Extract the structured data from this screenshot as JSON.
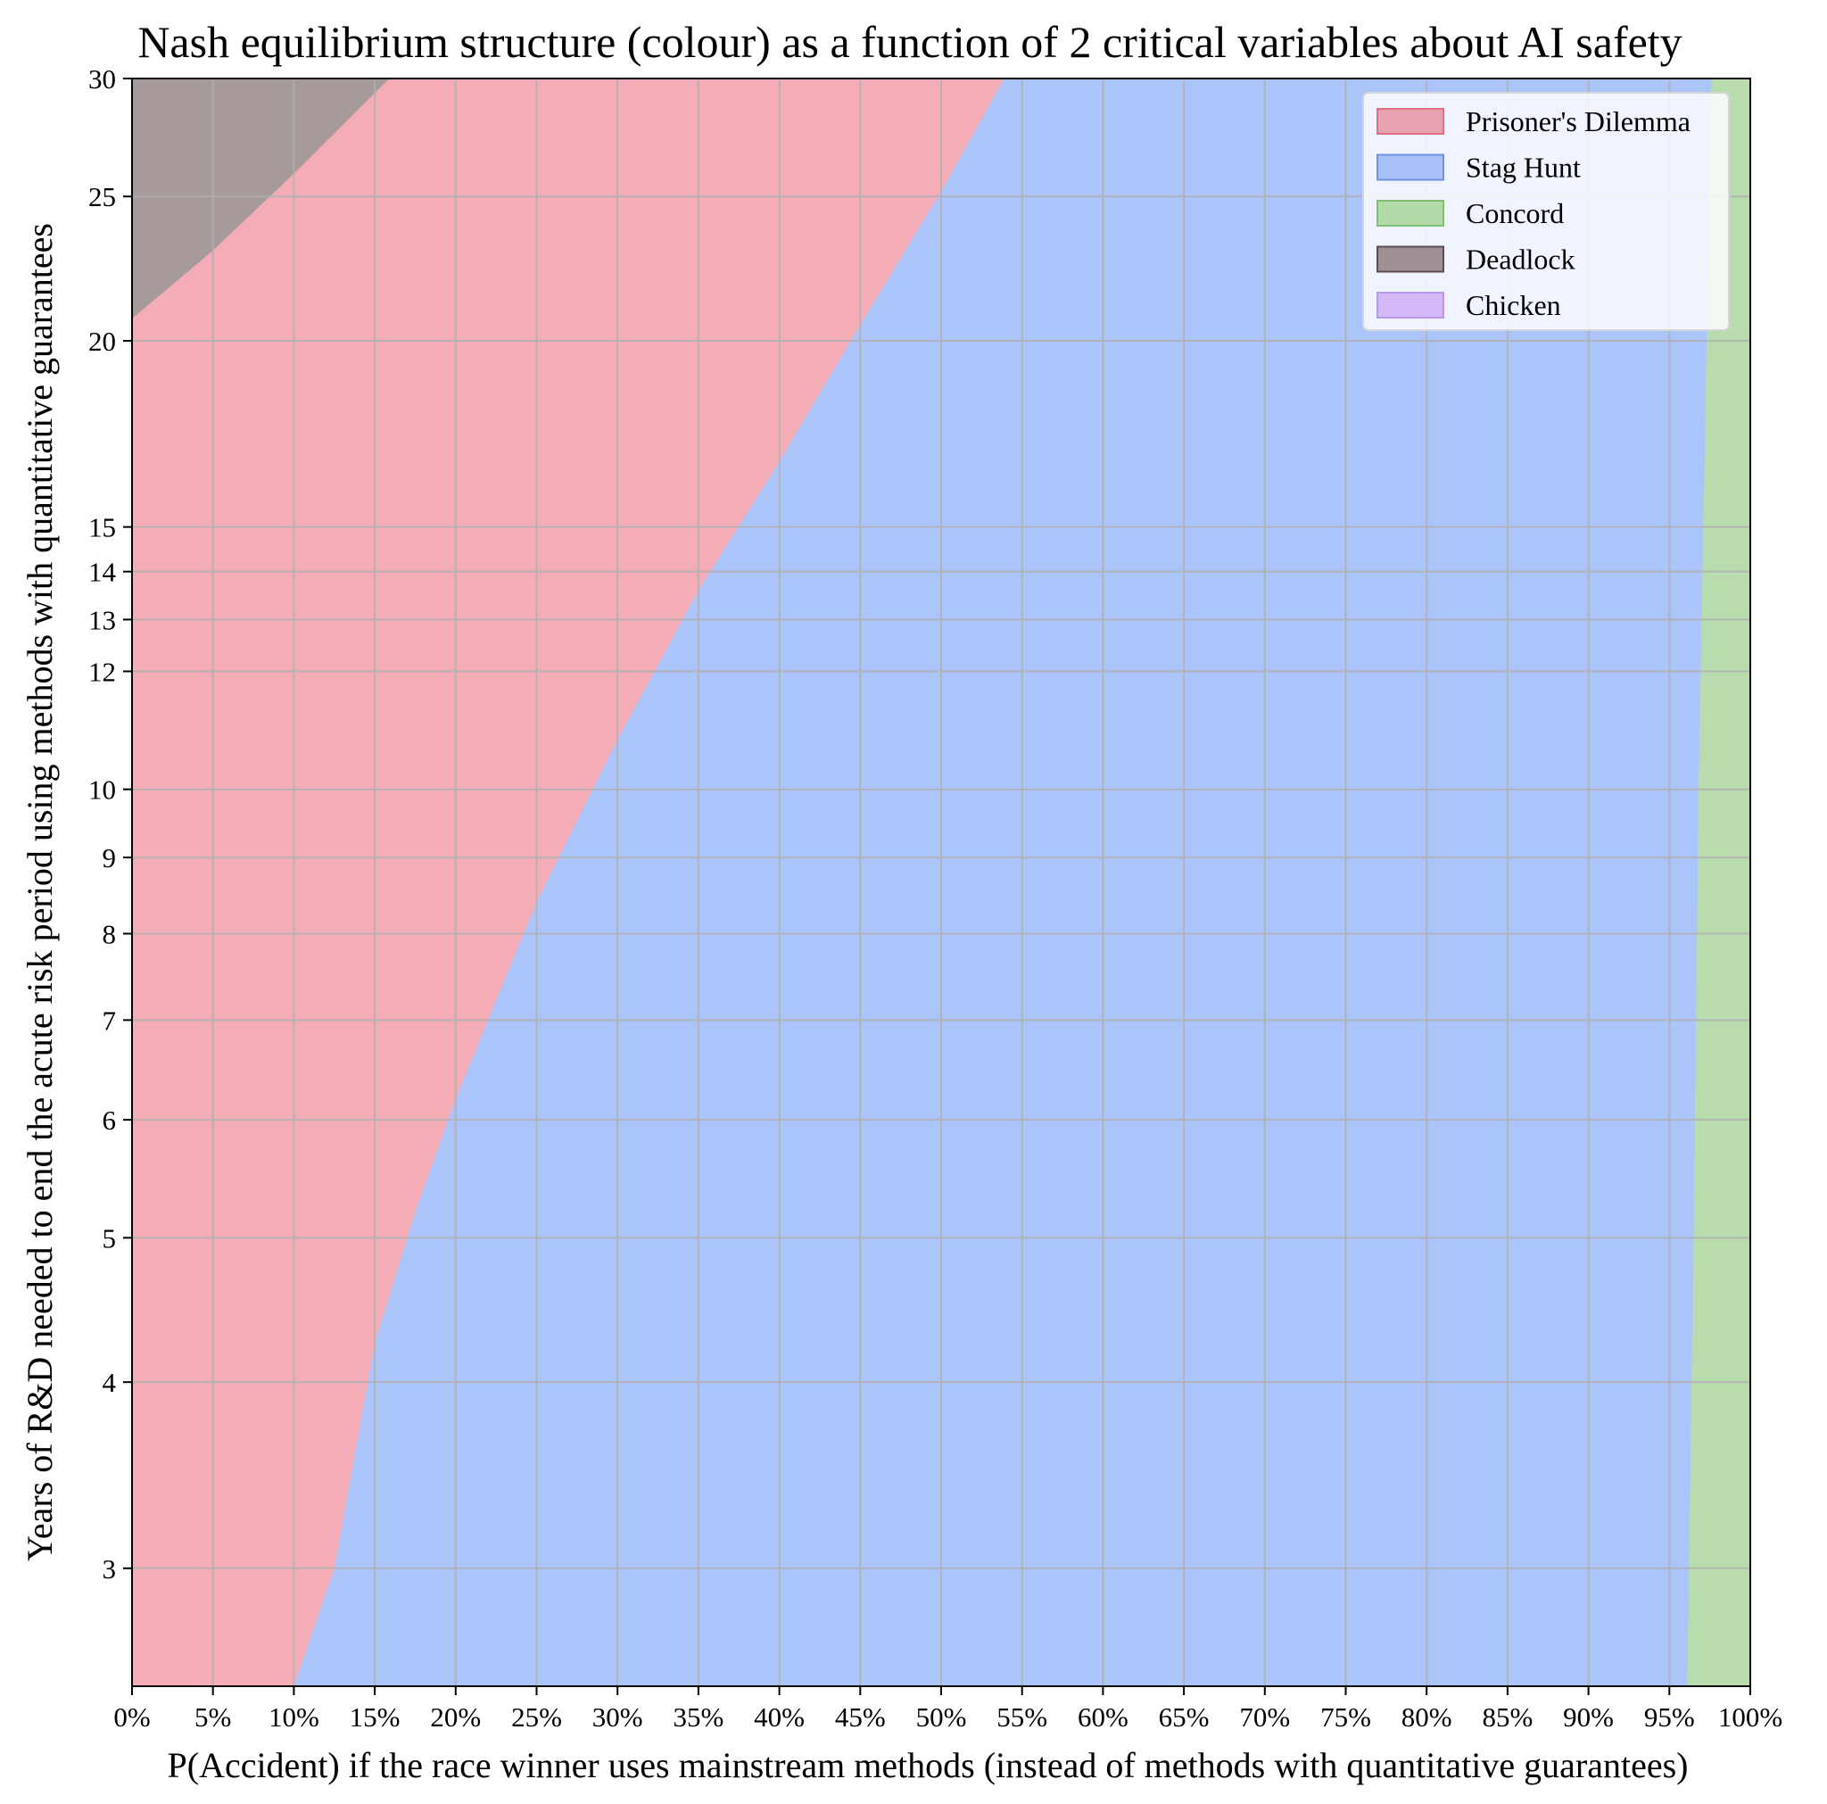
{
  "chart_data": {
    "type": "area",
    "title": "Nash equilibrium structure (colour) as a function of 2 critical variables about AI safety",
    "xlabel": "P(Accident) if the race winner uses mainstream methods (instead of methods with quantitative guarantees)",
    "ylabel": "Years of R&D needed to end the acute risk period using methods with quantitative guarantees",
    "xlim": [
      0,
      100
    ],
    "ylim": [
      2.5,
      30
    ],
    "yscale": "log",
    "grid": true,
    "legend_position": "top-right",
    "x_ticks": [
      0,
      5,
      10,
      15,
      20,
      25,
      30,
      35,
      40,
      45,
      50,
      55,
      60,
      65,
      70,
      75,
      80,
      85,
      90,
      95,
      100
    ],
    "x_tick_labels": [
      "0%",
      "5%",
      "10%",
      "15%",
      "20%",
      "25%",
      "30%",
      "35%",
      "40%",
      "45%",
      "50%",
      "55%",
      "60%",
      "65%",
      "70%",
      "75%",
      "80%",
      "85%",
      "90%",
      "95%",
      "100%"
    ],
    "y_ticks": [
      3,
      4,
      5,
      6,
      7,
      8,
      9,
      10,
      12,
      13,
      14,
      15,
      20,
      25,
      30
    ],
    "y_tick_labels": [
      "3",
      "4",
      "5",
      "6",
      "7",
      "8",
      "9",
      "10",
      "12",
      "13",
      "14",
      "15",
      "20",
      "25",
      "30"
    ],
    "series": [
      {
        "name": "Prisoner's Dilemma",
        "color": "#f4acb7",
        "legend_color": "#e9a3b0",
        "legend_edge": "#e0707f",
        "region": "between Deadlock boundary (above) and Stag Hunt boundary (right)"
      },
      {
        "name": "Stag Hunt",
        "color": "#abc4f9",
        "legend_color": "#a8c0f5",
        "legend_edge": "#6f92e8",
        "region": "right of Prisoner's Dilemma boundary, left of Concord boundary"
      },
      {
        "name": "Concord",
        "color": "#b8dcae",
        "legend_color": "#b3dba8",
        "legend_edge": "#7fbf76",
        "region": "right of Concord boundary"
      },
      {
        "name": "Deadlock",
        "color": "#a69a9b",
        "legend_color": "#9e9094",
        "legend_edge": "#5e4a52",
        "region": "upper-left corner"
      },
      {
        "name": "Chicken",
        "color": "#d3baf6",
        "legend_color": "#d3baf6",
        "legend_edge": "#b897ee",
        "region": "none visible"
      }
    ],
    "boundaries": {
      "deadlock_pd": [
        {
          "x": 0,
          "y": 20.7
        },
        {
          "x": 5,
          "y": 23.0
        },
        {
          "x": 10,
          "y": 25.9
        },
        {
          "x": 15.9,
          "y": 30
        }
      ],
      "pd_staghunt": [
        {
          "x": 10,
          "y": 2.5
        },
        {
          "x": 12.5,
          "y": 3.0
        },
        {
          "x": 15,
          "y": 4.25
        },
        {
          "x": 17.5,
          "y": 5.2
        },
        {
          "x": 20,
          "y": 6.2
        },
        {
          "x": 25,
          "y": 8.4
        },
        {
          "x": 30,
          "y": 10.8
        },
        {
          "x": 35,
          "y": 13.6
        },
        {
          "x": 40,
          "y": 16.6
        },
        {
          "x": 45,
          "y": 20.5
        },
        {
          "x": 50,
          "y": 25.2
        },
        {
          "x": 53.9,
          "y": 30
        }
      ],
      "staghunt_concord": [
        {
          "x": 96.1,
          "y": 2.5
        },
        {
          "x": 96.5,
          "y": 5.0
        },
        {
          "x": 96.8,
          "y": 10.0
        },
        {
          "x": 97.1,
          "y": 15.0
        },
        {
          "x": 97.3,
          "y": 20.0
        },
        {
          "x": 97.6,
          "y": 30
        }
      ]
    }
  }
}
